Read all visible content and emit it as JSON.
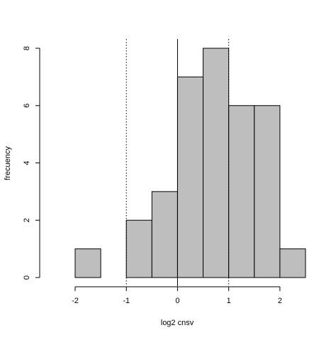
{
  "chart_data": {
    "type": "bar",
    "subtype": "histogram",
    "title": "",
    "xlabel": "log2 cnsv",
    "ylabel": "frecuency",
    "bins": [
      {
        "start": -2.0,
        "end": -1.5,
        "count": 1
      },
      {
        "start": -1.5,
        "end": -1.0,
        "count": 0
      },
      {
        "start": -1.0,
        "end": -0.5,
        "count": 2
      },
      {
        "start": -0.5,
        "end": 0.0,
        "count": 3
      },
      {
        "start": 0.0,
        "end": 0.5,
        "count": 7
      },
      {
        "start": 0.5,
        "end": 1.0,
        "count": 8
      },
      {
        "start": 1.0,
        "end": 1.5,
        "count": 6
      },
      {
        "start": 1.5,
        "end": 2.0,
        "count": 6
      },
      {
        "start": 2.0,
        "end": 2.5,
        "count": 1
      }
    ],
    "xlim": [
      -2.0,
      2.5
    ],
    "ylim": [
      0,
      8
    ],
    "x_ticks": [
      -2,
      -1,
      0,
      1,
      2
    ],
    "x_tick_labels": [
      "-2",
      "-1",
      "0",
      "1",
      "2"
    ],
    "y_ticks": [
      0,
      2,
      4,
      6,
      8
    ],
    "y_tick_labels": [
      "0",
      "2",
      "4",
      "6",
      "8"
    ],
    "reference_lines": [
      {
        "x": -1,
        "style": "dotted"
      },
      {
        "x": 0,
        "style": "solid"
      },
      {
        "x": 1,
        "style": "dotted"
      }
    ],
    "grid": false,
    "legend": "none",
    "bar_fill": "#bebebe",
    "bar_stroke": "#000000"
  }
}
